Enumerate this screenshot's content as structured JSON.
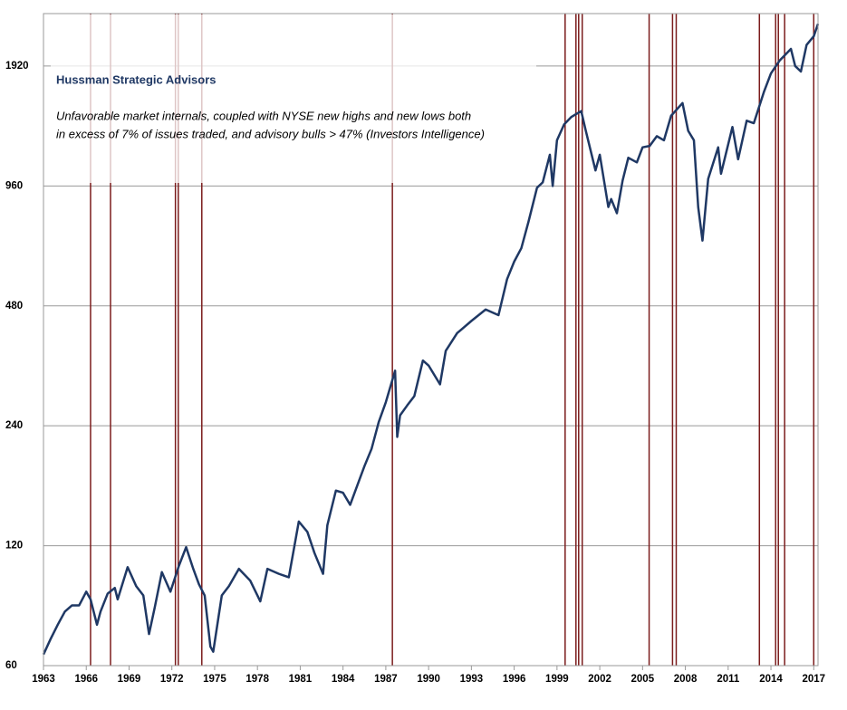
{
  "chart_data": {
    "type": "line",
    "title": "Hussman Strategic Advisors",
    "annotation": [
      "Unfavorable market internals, coupled with NYSE new highs and new lows both",
      "in excess of 7% of issues traded, and advisory bulls > 47% (Investors Intelligence)"
    ],
    "log_scale": true,
    "grid": true,
    "color": "#1f3864",
    "signal_color": "#7b1c1c",
    "xlim": [
      1963,
      2017.3
    ],
    "xticks": [
      1963,
      1966,
      1969,
      1972,
      1975,
      1978,
      1981,
      1984,
      1987,
      1990,
      1993,
      1996,
      1999,
      2002,
      2005,
      2008,
      2011,
      2014,
      2017
    ],
    "ylim": [
      60,
      2600
    ],
    "yticks": [
      60,
      120,
      240,
      480,
      960,
      1920
    ],
    "x": [
      1963.0,
      1963.5,
      1964.0,
      1964.5,
      1965.0,
      1965.5,
      1966.0,
      1966.3,
      1966.75,
      1967.0,
      1967.5,
      1968.0,
      1968.2,
      1968.9,
      1969.5,
      1970.0,
      1970.4,
      1970.8,
      1971.3,
      1971.9,
      1972.5,
      1973.0,
      1973.5,
      1973.9,
      1974.3,
      1974.7,
      1974.9,
      1975.5,
      1976.0,
      1976.7,
      1977.5,
      1978.2,
      1978.7,
      1979.5,
      1980.2,
      1980.9,
      1981.5,
      1982.0,
      1982.6,
      1982.9,
      1983.5,
      1984.0,
      1984.5,
      1985.0,
      1985.5,
      1986.0,
      1986.5,
      1987.0,
      1987.65,
      1987.8,
      1988.0,
      1988.5,
      1989.0,
      1989.6,
      1990.0,
      1990.8,
      1991.2,
      1992.0,
      1993.0,
      1994.0,
      1994.9,
      1995.5,
      1996.0,
      1996.5,
      1997.0,
      1997.6,
      1998.0,
      1998.5,
      1998.7,
      1999.0,
      1999.5,
      2000.0,
      2000.7,
      2001.0,
      2001.7,
      2002.0,
      2002.6,
      2002.8,
      2003.2,
      2003.6,
      2004.0,
      2004.6,
      2005.0,
      2005.5,
      2006.0,
      2006.5,
      2007.0,
      2007.8,
      2008.2,
      2008.6,
      2008.9,
      2009.2,
      2009.6,
      2010.3,
      2010.5,
      2011.3,
      2011.7,
      2012.3,
      2012.8,
      2013.5,
      2014.0,
      2014.6,
      2015.4,
      2015.7,
      2016.1,
      2016.5,
      2017.0,
      2017.3
    ],
    "values": [
      64,
      70,
      76,
      82,
      85,
      85,
      92,
      88,
      76,
      82,
      91,
      94,
      88,
      106,
      95,
      90,
      72,
      84,
      103,
      92,
      107,
      119,
      105,
      96,
      90,
      67,
      65,
      90,
      95,
      105,
      98,
      87,
      105,
      102,
      100,
      138,
      130,
      115,
      102,
      135,
      165,
      163,
      152,
      170,
      190,
      210,
      245,
      275,
      330,
      225,
      255,
      270,
      285,
      350,
      340,
      305,
      370,
      410,
      440,
      470,
      455,
      560,
      620,
      670,
      780,
      950,
      980,
      1150,
      960,
      1250,
      1370,
      1430,
      1480,
      1330,
      1050,
      1150,
      850,
      890,
      820,
      990,
      1130,
      1100,
      1200,
      1210,
      1280,
      1250,
      1440,
      1550,
      1320,
      1250,
      850,
      700,
      1000,
      1200,
      1030,
      1350,
      1120,
      1400,
      1380,
      1650,
      1840,
      1980,
      2120,
      1920,
      1860,
      2170,
      2280,
      2450
    ],
    "signals": [
      1966.3,
      1967.7,
      1972.25,
      1972.45,
      1974.1,
      1987.46,
      1999.57,
      2000.33,
      2000.52,
      2000.77,
      2005.46,
      2007.1,
      2007.36,
      2013.19,
      2014.33,
      2014.52,
      2014.96,
      2017.0
    ]
  }
}
